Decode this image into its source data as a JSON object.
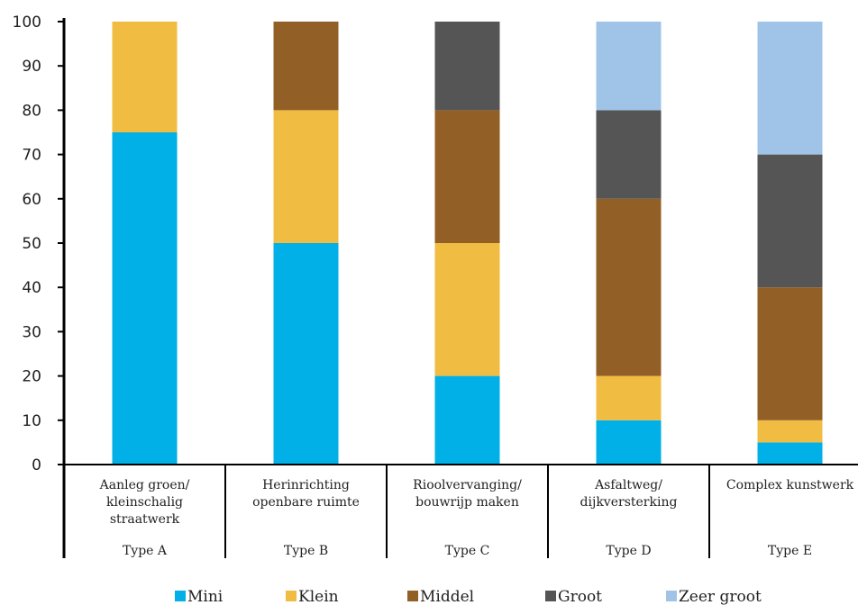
{
  "chart_data": {
    "type": "bar",
    "stacked": true,
    "ylim": [
      0,
      100
    ],
    "yticks": [
      0,
      10,
      20,
      30,
      40,
      50,
      60,
      70,
      80,
      90,
      100
    ],
    "grid": false,
    "legend_position": "bottom",
    "categories": [
      {
        "lines": [
          "Aanleg groen/",
          "kleinschalig",
          "straatwerk"
        ],
        "type_label": "Type A"
      },
      {
        "lines": [
          "Herinrichting",
          "openbare ruimte"
        ],
        "type_label": "Type B"
      },
      {
        "lines": [
          "Rioolvervanging/",
          "bouwrijp maken"
        ],
        "type_label": "Type C"
      },
      {
        "lines": [
          "Asfaltweg/",
          "dijkversterking"
        ],
        "type_label": "Type D"
      },
      {
        "lines": [
          "Complex kunstwerk"
        ],
        "type_label": "Type E"
      }
    ],
    "series": [
      {
        "name": "Mini",
        "color": "#00b0e6",
        "values": [
          75,
          50,
          20,
          10,
          5
        ]
      },
      {
        "name": "Klein",
        "color": "#f0bc41",
        "values": [
          25,
          30,
          30,
          10,
          5
        ]
      },
      {
        "name": "Middel",
        "color": "#925f27",
        "values": [
          0,
          20,
          30,
          40,
          30
        ]
      },
      {
        "name": "Groot",
        "color": "#555556",
        "values": [
          0,
          0,
          20,
          20,
          30
        ]
      },
      {
        "name": "Zeer groot",
        "color": "#a0c4e8",
        "values": [
          0,
          0,
          0,
          20,
          30
        ]
      }
    ]
  }
}
